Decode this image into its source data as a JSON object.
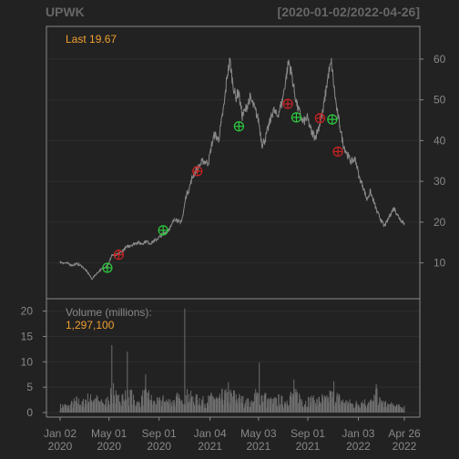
{
  "chart_data": {
    "type": "line",
    "ticker": "UPWK",
    "date_range": "[2020-01-02/2022-04-26]",
    "last_label": "Last",
    "last_value": "19.67",
    "price": {
      "ylim": [
        3,
        66
      ],
      "yticks": [
        10,
        20,
        30,
        40,
        50,
        60
      ],
      "points": [
        [
          "2020-01-02",
          10.2
        ],
        [
          "2020-01-10",
          10.0
        ],
        [
          "2020-01-20",
          9.9
        ],
        [
          "2020-02-01",
          9.4
        ],
        [
          "2020-02-12",
          9.8
        ],
        [
          "2020-02-24",
          9.2
        ],
        [
          "2020-03-06",
          8.1
        ],
        [
          "2020-03-13",
          7.2
        ],
        [
          "2020-03-20",
          6.0
        ],
        [
          "2020-03-27",
          6.9
        ],
        [
          "2020-04-03",
          7.6
        ],
        [
          "2020-04-10",
          8.3
        ],
        [
          "2020-04-17",
          8.7
        ],
        [
          "2020-04-24",
          9.2
        ],
        [
          "2020-05-01",
          9.9
        ],
        [
          "2020-05-08",
          12.0
        ],
        [
          "2020-05-15",
          11.6
        ],
        [
          "2020-05-22",
          12.1
        ],
        [
          "2020-06-01",
          12.8
        ],
        [
          "2020-06-10",
          13.6
        ],
        [
          "2020-06-19",
          14.2
        ],
        [
          "2020-06-30",
          14.6
        ],
        [
          "2020-07-10",
          15.0
        ],
        [
          "2020-07-20",
          14.7
        ],
        [
          "2020-07-31",
          15.3
        ],
        [
          "2020-08-10",
          14.8
        ],
        [
          "2020-08-21",
          15.4
        ],
        [
          "2020-08-31",
          16.2
        ],
        [
          "2020-09-11",
          17.0
        ],
        [
          "2020-09-21",
          17.8
        ],
        [
          "2020-10-01",
          19.0
        ],
        [
          "2020-10-09",
          21.0
        ],
        [
          "2020-10-16",
          20.5
        ],
        [
          "2020-10-23",
          19.6
        ],
        [
          "2020-10-30",
          21.8
        ],
        [
          "2020-11-06",
          26.5
        ],
        [
          "2020-11-13",
          28.0
        ],
        [
          "2020-11-20",
          30.5
        ],
        [
          "2020-11-30",
          32.7
        ],
        [
          "2020-12-09",
          33.8
        ],
        [
          "2020-12-18",
          35.0
        ],
        [
          "2020-12-31",
          34.5
        ],
        [
          "2021-01-08",
          39.0
        ],
        [
          "2021-01-15",
          41.5
        ],
        [
          "2021-01-25",
          40.2
        ],
        [
          "2021-02-01",
          44.5
        ],
        [
          "2021-02-08",
          49.0
        ],
        [
          "2021-02-15",
          56.0
        ],
        [
          "2021-02-22",
          59.5
        ],
        [
          "2021-03-01",
          54.0
        ],
        [
          "2021-03-08",
          50.5
        ],
        [
          "2021-03-15",
          52.0
        ],
        [
          "2021-03-24",
          46.0
        ],
        [
          "2021-04-01",
          47.5
        ],
        [
          "2021-04-12",
          50.5
        ],
        [
          "2021-04-23",
          48.0
        ],
        [
          "2021-05-03",
          45.0
        ],
        [
          "2021-05-12",
          39.0
        ],
        [
          "2021-05-20",
          40.5
        ],
        [
          "2021-05-28",
          43.5
        ],
        [
          "2021-06-08",
          47.5
        ],
        [
          "2021-06-18",
          46.0
        ],
        [
          "2021-06-30",
          49.5
        ],
        [
          "2021-07-09",
          55.0
        ],
        [
          "2021-07-16",
          59.5
        ],
        [
          "2021-07-23",
          56.5
        ],
        [
          "2021-07-30",
          52.0
        ],
        [
          "2021-08-06",
          48.5
        ],
        [
          "2021-08-13",
          46.5
        ],
        [
          "2021-08-20",
          44.5
        ],
        [
          "2021-08-31",
          45.5
        ],
        [
          "2021-09-10",
          42.0
        ],
        [
          "2021-09-20",
          41.0
        ],
        [
          "2021-09-30",
          44.0
        ],
        [
          "2021-10-08",
          47.0
        ],
        [
          "2021-10-15",
          52.0
        ],
        [
          "2021-10-22",
          56.5
        ],
        [
          "2021-10-29",
          59.0
        ],
        [
          "2021-11-05",
          52.5
        ],
        [
          "2021-11-12",
          47.0
        ],
        [
          "2021-11-19",
          43.5
        ],
        [
          "2021-11-26",
          39.5
        ],
        [
          "2021-12-03",
          37.5
        ],
        [
          "2021-12-10",
          36.0
        ],
        [
          "2021-12-17",
          34.8
        ],
        [
          "2021-12-27",
          35.5
        ],
        [
          "2022-01-05",
          31.0
        ],
        [
          "2022-01-14",
          29.0
        ],
        [
          "2022-01-24",
          25.5
        ],
        [
          "2022-02-01",
          27.5
        ],
        [
          "2022-02-10",
          25.0
        ],
        [
          "2022-02-18",
          22.5
        ],
        [
          "2022-02-28",
          20.5
        ],
        [
          "2022-03-07",
          19.0
        ],
        [
          "2022-03-14",
          20.0
        ],
        [
          "2022-03-23",
          22.0
        ],
        [
          "2022-04-01",
          23.5
        ],
        [
          "2022-04-08",
          22.0
        ],
        [
          "2022-04-14",
          21.0
        ],
        [
          "2022-04-21",
          20.2
        ],
        [
          "2022-04-26",
          19.67
        ]
      ]
    },
    "signals": [
      {
        "date": "2020-04-27",
        "value": 8.8,
        "kind": "buy"
      },
      {
        "date": "2020-05-25",
        "value": 12.0,
        "kind": "sell"
      },
      {
        "date": "2020-09-11",
        "value": 18.0,
        "kind": "buy"
      },
      {
        "date": "2020-12-04",
        "value": 32.5,
        "kind": "sell"
      },
      {
        "date": "2021-03-16",
        "value": 43.5,
        "kind": "buy"
      },
      {
        "date": "2021-07-14",
        "value": 49.0,
        "kind": "sell"
      },
      {
        "date": "2021-08-04",
        "value": 45.7,
        "kind": "buy"
      },
      {
        "date": "2021-10-01",
        "value": 45.5,
        "kind": "sell"
      },
      {
        "date": "2021-10-31",
        "value": 45.2,
        "kind": "buy"
      },
      {
        "date": "2021-11-14",
        "value": 37.3,
        "kind": "sell"
      }
    ],
    "volume": {
      "label": "Volume (millions):",
      "last_value": "1,297,100",
      "ylim": [
        0,
        21
      ],
      "yticks": [
        0,
        5,
        10,
        15,
        20
      ],
      "points": [
        [
          "2020-01-02",
          1.2
        ],
        [
          "2020-01-12",
          1.4
        ],
        [
          "2020-01-22",
          1.1
        ],
        [
          "2020-02-03",
          1.9
        ],
        [
          "2020-02-13",
          2.3
        ],
        [
          "2020-02-25",
          1.6
        ],
        [
          "2020-03-06",
          2.8
        ],
        [
          "2020-03-16",
          2.5
        ],
        [
          "2020-03-26",
          2.9
        ],
        [
          "2020-04-06",
          2.1
        ],
        [
          "2020-04-16",
          1.7
        ],
        [
          "2020-04-27",
          2.2
        ],
        [
          "2020-05-06",
          4.0
        ],
        [
          "2020-05-08",
          13.3
        ],
        [
          "2020-05-12",
          5.8
        ],
        [
          "2020-05-20",
          2.2
        ],
        [
          "2020-06-01",
          3.8
        ],
        [
          "2020-06-08",
          2.0
        ],
        [
          "2020-06-15",
          12.0
        ],
        [
          "2020-06-22",
          4.0
        ],
        [
          "2020-07-01",
          2.2
        ],
        [
          "2020-07-13",
          1.7
        ],
        [
          "2020-07-22",
          2.6
        ],
        [
          "2020-07-30",
          7.5
        ],
        [
          "2020-08-05",
          3.8
        ],
        [
          "2020-08-17",
          1.9
        ],
        [
          "2020-08-28",
          2.0
        ],
        [
          "2020-09-10",
          2.4
        ],
        [
          "2020-09-22",
          2.2
        ],
        [
          "2020-10-05",
          2.0
        ],
        [
          "2020-10-16",
          2.8
        ],
        [
          "2020-10-28",
          1.7
        ],
        [
          "2020-11-03",
          20.5
        ],
        [
          "2020-11-06",
          4.6
        ],
        [
          "2020-11-16",
          3.0
        ],
        [
          "2020-11-27",
          2.3
        ],
        [
          "2020-12-09",
          2.7
        ],
        [
          "2020-12-21",
          2.0
        ],
        [
          "2021-01-04",
          2.6
        ],
        [
          "2021-01-14",
          3.0
        ],
        [
          "2021-01-26",
          2.2
        ],
        [
          "2021-02-08",
          4.1
        ],
        [
          "2021-02-18",
          6.0
        ],
        [
          "2021-02-26",
          4.2
        ],
        [
          "2021-03-10",
          3.0
        ],
        [
          "2021-03-22",
          2.4
        ],
        [
          "2021-04-05",
          2.0
        ],
        [
          "2021-04-20",
          1.8
        ],
        [
          "2021-05-05",
          9.8
        ],
        [
          "2021-05-12",
          4.0
        ],
        [
          "2021-05-24",
          2.3
        ],
        [
          "2021-06-07",
          2.0
        ],
        [
          "2021-06-21",
          2.5
        ],
        [
          "2021-07-06",
          2.1
        ],
        [
          "2021-07-20",
          3.1
        ],
        [
          "2021-07-29",
          6.5
        ],
        [
          "2021-08-10",
          3.2
        ],
        [
          "2021-08-24",
          2.0
        ],
        [
          "2021-09-08",
          2.4
        ],
        [
          "2021-09-22",
          2.1
        ],
        [
          "2021-10-06",
          2.6
        ],
        [
          "2021-10-20",
          2.3
        ],
        [
          "2021-11-04",
          6.2
        ],
        [
          "2021-11-12",
          3.0
        ],
        [
          "2021-11-26",
          2.1
        ],
        [
          "2021-12-10",
          1.9
        ],
        [
          "2021-12-24",
          1.5
        ],
        [
          "2022-01-10",
          2.1
        ],
        [
          "2022-01-24",
          1.9
        ],
        [
          "2022-02-10",
          2.0
        ],
        [
          "2022-02-16",
          5.6
        ],
        [
          "2022-02-24",
          2.2
        ],
        [
          "2022-03-10",
          1.6
        ],
        [
          "2022-03-24",
          1.4
        ],
        [
          "2022-04-07",
          1.2
        ],
        [
          "2022-04-19",
          1.0
        ],
        [
          "2022-04-26",
          1.3
        ]
      ]
    },
    "x_ticks": [
      {
        "date": "2020-01-02",
        "line1": "Jan 02",
        "line2": "2020"
      },
      {
        "date": "2020-05-01",
        "line1": "May 01",
        "line2": "2020"
      },
      {
        "date": "2020-09-01",
        "line1": "Sep 01",
        "line2": "2020"
      },
      {
        "date": "2021-01-04",
        "line1": "Jan 04",
        "line2": "2021"
      },
      {
        "date": "2021-05-03",
        "line1": "May 03",
        "line2": "2021"
      },
      {
        "date": "2021-09-01",
        "line1": "Sep 01",
        "line2": "2021"
      },
      {
        "date": "2022-01-03",
        "line1": "Jan 03",
        "line2": "2022"
      },
      {
        "date": "2022-04-26",
        "line1": "Apr 26",
        "line2": "2022"
      }
    ],
    "colors": {
      "background": "#222222",
      "panel_border": "#888888",
      "grid": "#2e2e2e",
      "price_line": "#8a8a8a",
      "volume_bars": "#6e6e6e",
      "label": "#888888",
      "highlight": "#f0a030",
      "buy": "#2ecc40",
      "sell": "#cc2222"
    },
    "grid": true
  }
}
